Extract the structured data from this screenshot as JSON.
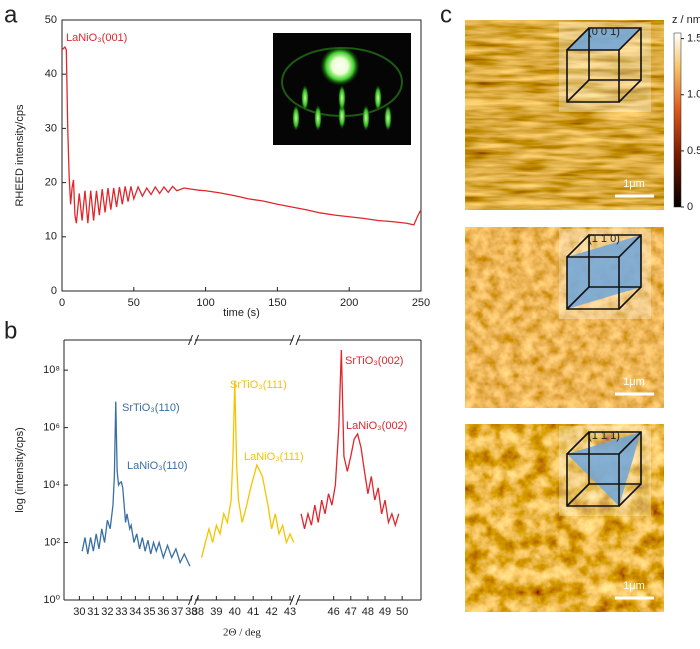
{
  "chart_data": [
    {
      "type": "line",
      "panel_label": "a",
      "xlabel": "time (s)",
      "ylabel": "RHEED intensity/cps",
      "color": "#e0262b",
      "annotations": [
        "LaNiO₃(001)"
      ],
      "x": [
        0,
        2,
        3,
        4,
        5,
        6,
        7,
        8,
        9,
        10,
        12,
        14,
        16,
        18,
        20,
        22,
        24,
        26,
        28,
        30,
        32,
        34,
        36,
        38,
        40,
        42,
        44,
        46,
        48,
        50,
        53,
        56,
        59,
        62,
        65,
        68,
        71,
        74,
        77,
        80,
        85,
        90,
        95,
        100,
        110,
        120,
        130,
        140,
        150,
        160,
        170,
        180,
        190,
        200,
        210,
        220,
        230,
        240,
        245,
        248,
        250
      ],
      "values": [
        44.5,
        45,
        44.5,
        30,
        21,
        16,
        19,
        20.5,
        14,
        12.5,
        18,
        13,
        18.5,
        12.5,
        18.5,
        13,
        18.5,
        14,
        18.8,
        14.5,
        19,
        15,
        19,
        15.5,
        19.2,
        16,
        19.3,
        16.5,
        19.3,
        17,
        19.2,
        17.5,
        19,
        17.8,
        19.2,
        18,
        19.2,
        18.2,
        19.3,
        18.5,
        19,
        18.8,
        18.6,
        18.5,
        18.1,
        17.6,
        17,
        16.6,
        16,
        15.5,
        15,
        14.4,
        14,
        13.7,
        13.4,
        13,
        12.8,
        12.5,
        12.2,
        14,
        15
      ],
      "xlim": [
        0,
        250
      ],
      "xticks": [
        0,
        50,
        100,
        150,
        200,
        250
      ],
      "ylim": [
        0,
        50
      ],
      "yticks": [
        0,
        10,
        20,
        30,
        40,
        50
      ]
    },
    {
      "type": "broken-log-line",
      "panel_label": "b",
      "xlabel": "2Θ / deg",
      "ylabel": "log (intensity/cps)",
      "log_y": true,
      "xlim": [
        [
          28.9,
          38.05
        ],
        [
          37.84,
          43.16
        ],
        [
          43.86,
          51.1
        ]
      ],
      "xticks": [
        [
          30,
          31,
          32,
          33,
          34,
          35,
          36,
          37,
          38
        ],
        [
          38,
          39,
          40,
          41,
          42,
          43
        ],
        [
          46,
          47,
          48,
          49,
          50
        ]
      ],
      "ylim": [
        1,
        1120000000
      ],
      "yticks": [
        {
          "value": 1,
          "label": "10⁰"
        },
        {
          "value": 100,
          "label": "10²"
        },
        {
          "value": 10000,
          "label": "10⁴"
        },
        {
          "value": 1000000,
          "label": "10⁶"
        },
        {
          "value": 100000000,
          "label": "10⁸"
        }
      ],
      "series": [
        {
          "color": "#3a6ea5",
          "labels": [
            "SrTiO₃(110)",
            "LaNiO₃(110)"
          ],
          "x": [
            30.2,
            30.4,
            30.6,
            30.8,
            31.0,
            31.2,
            31.4,
            31.6,
            31.8,
            32.0,
            32.2,
            32.4,
            32.5,
            32.6,
            32.7,
            32.8,
            32.9,
            33.0,
            33.1,
            33.2,
            33.3,
            33.4,
            33.6,
            33.7,
            33.9,
            34.1,
            34.3,
            34.5,
            34.7,
            34.9,
            35.1,
            35.3,
            35.5,
            35.7,
            36.0,
            36.3,
            36.6,
            36.9,
            37.2,
            37.5,
            37.9
          ],
          "values": [
            50,
            150,
            40,
            150,
            50,
            200,
            60,
            300,
            100,
            600,
            300,
            2000,
            20000,
            8000000,
            30000,
            10000,
            12000,
            13000,
            8000,
            2000,
            500,
            1000,
            300,
            400,
            100,
            200,
            60,
            150,
            50,
            120,
            40,
            100,
            50,
            100,
            30,
            80,
            30,
            60,
            20,
            40,
            15
          ]
        },
        {
          "color": "#f5c400",
          "labels": [
            "SrTiO₃(111)",
            "LaNiO₃(111)"
          ],
          "x": [
            38.2,
            38.4,
            38.6,
            38.8,
            39.0,
            39.2,
            39.4,
            39.6,
            39.8,
            39.9,
            40.0,
            40.1,
            40.2,
            40.4,
            40.6,
            40.9,
            41.2,
            41.5,
            41.8,
            42.0,
            42.2,
            42.4,
            42.6,
            42.8,
            43.0,
            43.2
          ],
          "values": [
            30,
            100,
            300,
            100,
            400,
            200,
            1000,
            500,
            3000,
            100000,
            40000000,
            50000,
            3000,
            500,
            1500,
            10000,
            50000,
            20000,
            2000,
            300,
            1000,
            200,
            400,
            100,
            200,
            100
          ]
        },
        {
          "color": "#e0262b",
          "labels": [
            "SrTiO₃(002)",
            "LaNiO₃(002)"
          ],
          "x": [
            44.1,
            44.3,
            44.5,
            44.7,
            44.9,
            45.1,
            45.3,
            45.5,
            45.7,
            45.9,
            46.1,
            46.3,
            46.45,
            46.6,
            46.8,
            47.0,
            47.2,
            47.4,
            47.6,
            47.8,
            48.0,
            48.2,
            48.4,
            48.6,
            48.8,
            49.0,
            49.2,
            49.4,
            49.6,
            49.8
          ],
          "values": [
            1000,
            300,
            1000,
            400,
            2000,
            500,
            3000,
            1000,
            5000,
            2000,
            10000,
            1000000,
            500000000,
            100000,
            30000,
            100000,
            400000,
            600000,
            200000,
            30000,
            5000,
            20000,
            3000,
            8000,
            1000,
            3000,
            500,
            1000,
            400,
            1000
          ]
        }
      ]
    },
    {
      "type": "afm",
      "panel_label": "c",
      "colorbar_label": "z / nm",
      "ylim": [
        0,
        1.55
      ],
      "yticks": [
        0,
        {
          "value": 0.5,
          "label": "0.5"
        },
        {
          "value": 1,
          "label": "1.0"
        },
        1.5
      ],
      "images": [
        {
          "label": "(0 0 1)",
          "scale_bar": "1μm"
        },
        {
          "label": "(1 1 0)",
          "scale_bar": "1μm"
        },
        {
          "label": "(1 1 1)",
          "scale_bar": "1μm"
        }
      ]
    }
  ]
}
